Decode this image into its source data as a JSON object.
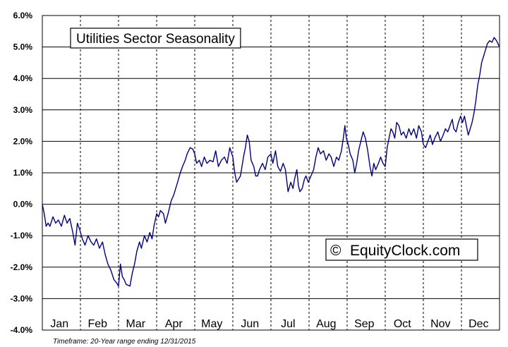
{
  "chart_data": {
    "type": "line",
    "title": "Utilities Sector Seasonality",
    "watermark": "EquityClock.com",
    "watermark_symbol": "©",
    "footnote": "Timeframe: 20-Year range ending 12/31/2015",
    "categories": [
      "Jan",
      "Feb",
      "Mar",
      "Apr",
      "May",
      "Jun",
      "Jul",
      "Aug",
      "Sep",
      "Oct",
      "Nov",
      "Dec"
    ],
    "y_ticks": [
      "6.0%",
      "5.0%",
      "4.0%",
      "3.0%",
      "2.0%",
      "1.0%",
      "0.0%",
      "-1.0%",
      "-2.0%",
      "-3.0%",
      "-4.0%"
    ],
    "ylim": [
      -4.0,
      6.0
    ],
    "xlim": [
      0,
      12
    ],
    "grid": "horizontal solid, vertical dashed at month boundaries",
    "line_color": "#000080",
    "series": [
      {
        "values": [
          [
            0.0,
            0.0
          ],
          [
            0.05,
            -0.3
          ],
          [
            0.1,
            -0.7
          ],
          [
            0.15,
            -0.6
          ],
          [
            0.2,
            -0.7
          ],
          [
            0.28,
            -0.4
          ],
          [
            0.35,
            -0.6
          ],
          [
            0.42,
            -0.5
          ],
          [
            0.5,
            -0.7
          ],
          [
            0.58,
            -0.35
          ],
          [
            0.65,
            -0.6
          ],
          [
            0.72,
            -0.45
          ],
          [
            0.8,
            -0.9
          ],
          [
            0.86,
            -1.3
          ],
          [
            0.92,
            -0.6
          ],
          [
            0.98,
            -0.8
          ],
          [
            1.05,
            -1.1
          ],
          [
            1.12,
            -1.3
          ],
          [
            1.2,
            -1.0
          ],
          [
            1.28,
            -1.2
          ],
          [
            1.35,
            -1.3
          ],
          [
            1.42,
            -1.1
          ],
          [
            1.5,
            -1.4
          ],
          [
            1.58,
            -1.2
          ],
          [
            1.65,
            -1.6
          ],
          [
            1.72,
            -1.9
          ],
          [
            1.8,
            -2.1
          ],
          [
            1.88,
            -2.4
          ],
          [
            1.95,
            -2.5
          ],
          [
            2.0,
            -2.6
          ],
          [
            2.05,
            -1.9
          ],
          [
            2.1,
            -2.3
          ],
          [
            2.15,
            -2.4
          ],
          [
            2.2,
            -2.55
          ],
          [
            2.3,
            -2.6
          ],
          [
            2.36,
            -2.2
          ],
          [
            2.42,
            -1.9
          ],
          [
            2.48,
            -1.5
          ],
          [
            2.55,
            -1.2
          ],
          [
            2.6,
            -1.4
          ],
          [
            2.68,
            -1.0
          ],
          [
            2.75,
            -1.2
          ],
          [
            2.82,
            -0.9
          ],
          [
            2.88,
            -1.1
          ],
          [
            2.93,
            -0.7
          ],
          [
            3.0,
            -0.3
          ],
          [
            3.05,
            -0.4
          ],
          [
            3.1,
            -0.2
          ],
          [
            3.18,
            -0.3
          ],
          [
            3.23,
            -0.6
          ],
          [
            3.3,
            -0.3
          ],
          [
            3.38,
            0.1
          ],
          [
            3.45,
            0.3
          ],
          [
            3.5,
            0.5
          ],
          [
            3.55,
            0.7
          ],
          [
            3.62,
            1.0
          ],
          [
            3.68,
            1.2
          ],
          [
            3.75,
            1.4
          ],
          [
            3.8,
            1.6
          ],
          [
            3.88,
            1.8
          ],
          [
            3.95,
            1.75
          ],
          [
            4.0,
            1.6
          ],
          [
            4.05,
            1.3
          ],
          [
            4.12,
            1.4
          ],
          [
            4.18,
            1.2
          ],
          [
            4.25,
            1.5
          ],
          [
            4.32,
            1.3
          ],
          [
            4.4,
            1.4
          ],
          [
            4.48,
            1.35
          ],
          [
            4.55,
            1.7
          ],
          [
            4.62,
            1.2
          ],
          [
            4.7,
            1.4
          ],
          [
            4.78,
            1.5
          ],
          [
            4.85,
            1.3
          ],
          [
            4.92,
            1.8
          ],
          [
            5.0,
            1.5
          ],
          [
            5.05,
            1.0
          ],
          [
            5.1,
            0.7
          ],
          [
            5.15,
            0.8
          ],
          [
            5.2,
            0.9
          ],
          [
            5.28,
            1.5
          ],
          [
            5.33,
            1.8
          ],
          [
            5.38,
            2.2
          ],
          [
            5.43,
            2.0
          ],
          [
            5.48,
            1.4
          ],
          [
            5.55,
            1.2
          ],
          [
            5.6,
            0.9
          ],
          [
            5.65,
            0.9
          ],
          [
            5.7,
            1.1
          ],
          [
            5.78,
            1.3
          ],
          [
            5.85,
            1.1
          ],
          [
            5.92,
            1.5
          ],
          [
            6.0,
            1.6
          ],
          [
            6.05,
            1.3
          ],
          [
            6.12,
            1.7
          ],
          [
            6.18,
            1.2
          ],
          [
            6.25,
            1.05
          ],
          [
            6.32,
            1.3
          ],
          [
            6.38,
            1.1
          ],
          [
            6.45,
            0.4
          ],
          [
            6.52,
            0.7
          ],
          [
            6.58,
            0.5
          ],
          [
            6.62,
            0.8
          ],
          [
            6.68,
            1.1
          ],
          [
            6.72,
            0.6
          ],
          [
            6.76,
            0.4
          ],
          [
            6.82,
            0.5
          ],
          [
            6.88,
            0.8
          ],
          [
            6.92,
            0.9
          ],
          [
            6.98,
            0.7
          ],
          [
            7.05,
            0.9
          ],
          [
            7.12,
            1.1
          ],
          [
            7.18,
            1.5
          ],
          [
            7.24,
            1.8
          ],
          [
            7.3,
            1.6
          ],
          [
            7.38,
            1.7
          ],
          [
            7.45,
            1.4
          ],
          [
            7.52,
            1.6
          ],
          [
            7.58,
            1.5
          ],
          [
            7.65,
            1.2
          ],
          [
            7.72,
            1.5
          ],
          [
            7.78,
            1.4
          ],
          [
            7.85,
            1.7
          ],
          [
            7.9,
            2.1
          ],
          [
            7.94,
            2.5
          ],
          [
            7.98,
            2.1
          ],
          [
            8.03,
            1.9
          ],
          [
            8.08,
            1.6
          ],
          [
            8.15,
            1.4
          ],
          [
            8.2,
            1.0
          ],
          [
            8.25,
            1.3
          ],
          [
            8.3,
            1.7
          ],
          [
            8.36,
            2.0
          ],
          [
            8.42,
            2.3
          ],
          [
            8.48,
            2.1
          ],
          [
            8.54,
            1.7
          ],
          [
            8.6,
            1.2
          ],
          [
            8.65,
            0.9
          ],
          [
            8.7,
            1.3
          ],
          [
            8.75,
            1.1
          ],
          [
            8.82,
            1.3
          ],
          [
            8.88,
            1.5
          ],
          [
            8.94,
            1.3
          ],
          [
            9.0,
            1.2
          ],
          [
            9.05,
            1.8
          ],
          [
            9.1,
            2.1
          ],
          [
            9.15,
            2.4
          ],
          [
            9.2,
            2.3
          ],
          [
            9.25,
            2.1
          ],
          [
            9.3,
            2.6
          ],
          [
            9.36,
            2.5
          ],
          [
            9.42,
            2.2
          ],
          [
            9.48,
            2.3
          ],
          [
            9.55,
            2.1
          ],
          [
            9.62,
            2.4
          ],
          [
            9.68,
            2.2
          ],
          [
            9.75,
            2.4
          ],
          [
            9.82,
            2.1
          ],
          [
            9.88,
            2.5
          ],
          [
            9.95,
            2.3
          ],
          [
            10.0,
            1.9
          ],
          [
            10.06,
            1.8
          ],
          [
            10.12,
            2.0
          ],
          [
            10.18,
            2.2
          ],
          [
            10.24,
            1.9
          ],
          [
            10.3,
            2.1
          ],
          [
            10.38,
            2.3
          ],
          [
            10.45,
            2.0
          ],
          [
            10.52,
            2.2
          ],
          [
            10.58,
            2.4
          ],
          [
            10.64,
            2.3
          ],
          [
            10.7,
            2.5
          ],
          [
            10.76,
            2.7
          ],
          [
            10.8,
            2.4
          ],
          [
            10.86,
            2.3
          ],
          [
            10.92,
            2.6
          ],
          [
            10.98,
            2.8
          ],
          [
            11.03,
            2.6
          ],
          [
            11.08,
            2.8
          ],
          [
            11.13,
            2.5
          ],
          [
            11.18,
            2.2
          ],
          [
            11.23,
            2.4
          ],
          [
            11.28,
            2.6
          ],
          [
            11.33,
            2.9
          ],
          [
            11.38,
            3.3
          ],
          [
            11.43,
            3.8
          ],
          [
            11.48,
            4.1
          ],
          [
            11.53,
            4.5
          ],
          [
            11.58,
            4.7
          ],
          [
            11.63,
            4.9
          ],
          [
            11.68,
            5.1
          ],
          [
            11.74,
            5.2
          ],
          [
            11.8,
            5.15
          ],
          [
            11.86,
            5.3
          ],
          [
            11.92,
            5.2
          ],
          [
            11.96,
            5.1
          ],
          [
            12.0,
            5.0
          ]
        ]
      }
    ]
  }
}
